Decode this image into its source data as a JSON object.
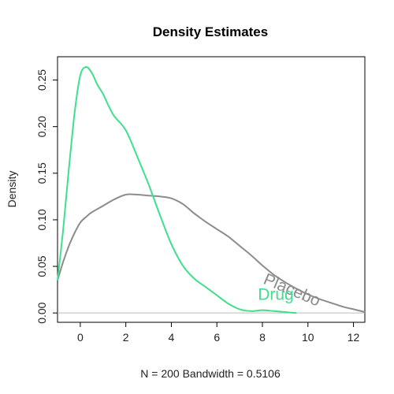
{
  "chart_data": {
    "type": "line",
    "title": "Density Estimates",
    "xlabel": "N = 200   Bandwidth = 0.5106",
    "ylabel": "Density",
    "xlim": [
      -1,
      12.5
    ],
    "ylim": [
      -0.01,
      0.275
    ],
    "x_ticks": [
      0,
      2,
      4,
      6,
      8,
      10,
      12
    ],
    "x_tick_labels": [
      "0",
      "2",
      "4",
      "6",
      "8",
      "10",
      "12"
    ],
    "y_ticks": [
      0.0,
      0.05,
      0.1,
      0.15,
      0.2,
      0.25
    ],
    "y_tick_labels": [
      "0.00",
      "0.05",
      "0.10",
      "0.15",
      "0.20",
      "0.25"
    ],
    "baseline": 0,
    "grid": false,
    "series": [
      {
        "name": "Placebo",
        "color": "#8c8c8c",
        "label_at": [
          8,
          0.032
        ],
        "label_angle": 23,
        "x": [
          -1,
          -0.75,
          -0.5,
          -0.25,
          0,
          0.25,
          0.5,
          1,
          1.5,
          2,
          2.5,
          3,
          3.5,
          4,
          4.5,
          5,
          5.5,
          6,
          6.5,
          7,
          7.5,
          8,
          8.5,
          9,
          9.5,
          10,
          10.5,
          11,
          11.5,
          12,
          12.5
        ],
        "y": [
          0.035,
          0.055,
          0.072,
          0.086,
          0.097,
          0.103,
          0.108,
          0.115,
          0.122,
          0.127,
          0.127,
          0.126,
          0.125,
          0.123,
          0.117,
          0.107,
          0.098,
          0.09,
          0.082,
          0.072,
          0.062,
          0.051,
          0.041,
          0.033,
          0.026,
          0.02,
          0.015,
          0.011,
          0.007,
          0.004,
          0.001
        ]
      },
      {
        "name": "Drug",
        "color": "#3fe08c",
        "label_at": [
          7.8,
          0.014
        ],
        "label_angle": 0,
        "x": [
          -1,
          -0.75,
          -0.5,
          -0.25,
          0,
          0.25,
          0.5,
          0.75,
          1,
          1.25,
          1.5,
          2,
          2.5,
          3,
          3.5,
          4,
          4.5,
          5,
          5.5,
          6,
          6.5,
          7,
          7.5,
          8,
          8.5,
          9,
          9.5
        ],
        "y": [
          0.035,
          0.09,
          0.155,
          0.215,
          0.255,
          0.264,
          0.258,
          0.245,
          0.235,
          0.222,
          0.211,
          0.196,
          0.168,
          0.138,
          0.105,
          0.074,
          0.051,
          0.037,
          0.028,
          0.019,
          0.01,
          0.004,
          0.002,
          0.003,
          0.002,
          0.001,
          0.0
        ]
      }
    ]
  }
}
